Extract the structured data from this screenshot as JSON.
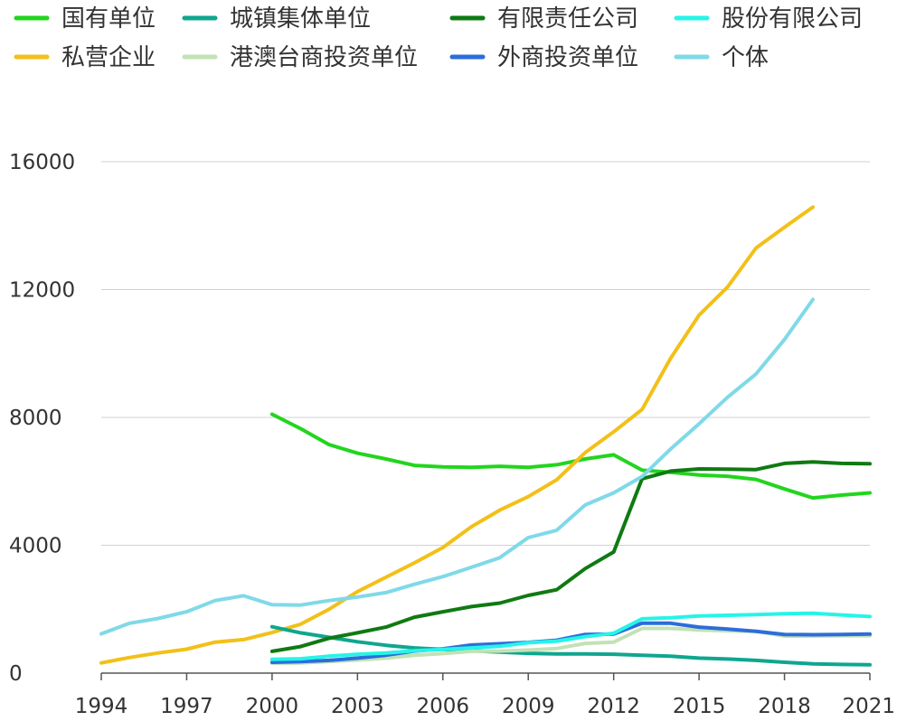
{
  "chart_data": {
    "type": "line",
    "title": "",
    "xlabel": "",
    "ylabel": "",
    "xlim": [
      1994,
      2021
    ],
    "ylim": [
      0,
      16000
    ],
    "grid": true,
    "legend_position": "top",
    "x_ticks": [
      "1994",
      "1997",
      "2000",
      "2003",
      "2006",
      "2009",
      "2012",
      "2015",
      "2018",
      "2021"
    ],
    "y_ticks": [
      "0",
      "4000",
      "8000",
      "12000",
      "16000"
    ],
    "x_tick_values": [
      1994,
      1997,
      2000,
      2003,
      2006,
      2009,
      2012,
      2015,
      2018,
      2021
    ],
    "y_tick_values": [
      0,
      4000,
      8000,
      12000,
      16000
    ],
    "series": [
      {
        "name": "国有单位",
        "color": "#22d51e",
        "x": [
          2000,
          2001,
          2002,
          2003,
          2004,
          2005,
          2006,
          2007,
          2008,
          2009,
          2010,
          2011,
          2012,
          2013,
          2014,
          2015,
          2016,
          2017,
          2018,
          2019,
          2020,
          2021
        ],
        "values": [
          8100,
          7650,
          7150,
          6880,
          6700,
          6500,
          6450,
          6440,
          6470,
          6440,
          6520,
          6700,
          6830,
          6350,
          6280,
          6200,
          6160,
          6060,
          5760,
          5480,
          5570,
          5640
        ]
      },
      {
        "name": "私营企业",
        "color": "#f2c018",
        "x": [
          1994,
          1995,
          1996,
          1997,
          1998,
          1999,
          2000,
          2001,
          2002,
          2003,
          2004,
          2005,
          2006,
          2007,
          2008,
          2009,
          2010,
          2011,
          2012,
          2013,
          2014,
          2015,
          2016,
          2017,
          2018,
          2019
        ],
        "values": [
          320,
          490,
          630,
          750,
          970,
          1050,
          1270,
          1530,
          2000,
          2550,
          3000,
          3450,
          3930,
          4580,
          5100,
          5520,
          6050,
          6900,
          7550,
          8250,
          9850,
          11200,
          12080,
          13300,
          13950,
          14580
        ]
      },
      {
        "name": "城镇集体单位",
        "color": "#0fa68f",
        "x": [
          2000,
          2001,
          2002,
          2003,
          2004,
          2005,
          2006,
          2007,
          2008,
          2009,
          2010,
          2011,
          2012,
          2013,
          2014,
          2015,
          2016,
          2017,
          2018,
          2019,
          2020,
          2021
        ],
        "values": [
          1450,
          1260,
          1120,
          980,
          870,
          790,
          740,
          700,
          660,
          620,
          600,
          600,
          590,
          560,
          530,
          470,
          440,
          400,
          340,
          290,
          270,
          260
        ]
      },
      {
        "name": "港澳台商投资单位",
        "color": "#c2e2b5",
        "x": [
          2000,
          2001,
          2002,
          2003,
          2004,
          2005,
          2006,
          2007,
          2008,
          2009,
          2010,
          2011,
          2012,
          2013,
          2014,
          2015,
          2016,
          2017,
          2018,
          2019,
          2020,
          2021
        ],
        "values": [
          310,
          320,
          360,
          410,
          470,
          560,
          610,
          680,
          690,
          720,
          770,
          930,
          970,
          1400,
          1400,
          1350,
          1320,
          1310,
          1160,
          1160,
          1170,
          1170
        ]
      },
      {
        "name": "有限责任公司",
        "color": "#0f7a12",
        "x": [
          2000,
          2001,
          2002,
          2003,
          2004,
          2005,
          2006,
          2007,
          2008,
          2009,
          2010,
          2011,
          2012,
          2013,
          2014,
          2015,
          2016,
          2017,
          2018,
          2019,
          2020,
          2021
        ],
        "values": [
          680,
          830,
          1090,
          1260,
          1440,
          1750,
          1920,
          2080,
          2190,
          2430,
          2610,
          3270,
          3790,
          6080,
          6320,
          6390,
          6380,
          6370,
          6560,
          6610,
          6560,
          6550
        ]
      },
      {
        "name": "外商投资单位",
        "color": "#2c6ddb",
        "x": [
          2000,
          2001,
          2002,
          2003,
          2004,
          2005,
          2006,
          2007,
          2008,
          2009,
          2010,
          2011,
          2012,
          2013,
          2014,
          2015,
          2016,
          2017,
          2018,
          2019,
          2020,
          2021
        ],
        "values": [
          340,
          360,
          400,
          470,
          560,
          690,
          760,
          880,
          920,
          960,
          1030,
          1210,
          1220,
          1560,
          1560,
          1440,
          1380,
          1310,
          1210,
          1200,
          1210,
          1220
        ]
      },
      {
        "name": "股份有限公司",
        "color": "#26f4e8",
        "x": [
          2000,
          2001,
          2002,
          2003,
          2004,
          2005,
          2006,
          2007,
          2008,
          2009,
          2010,
          2011,
          2012,
          2013,
          2014,
          2015,
          2016,
          2017,
          2018,
          2019,
          2020,
          2021
        ],
        "values": [
          430,
          450,
          530,
          590,
          630,
          700,
          740,
          790,
          840,
          950,
          1000,
          1140,
          1250,
          1700,
          1730,
          1790,
          1810,
          1830,
          1860,
          1870,
          1820,
          1770
        ]
      },
      {
        "name": "个体",
        "color": "#7fd9e8",
        "x": [
          1994,
          1995,
          1996,
          1997,
          1998,
          1999,
          2000,
          2001,
          2002,
          2003,
          2004,
          2005,
          2006,
          2007,
          2008,
          2009,
          2010,
          2011,
          2012,
          2013,
          2014,
          2015,
          2016,
          2017,
          2018,
          2019
        ],
        "values": [
          1230,
          1560,
          1710,
          1920,
          2270,
          2420,
          2140,
          2130,
          2270,
          2380,
          2520,
          2780,
          3020,
          3310,
          3610,
          4240,
          4470,
          5260,
          5640,
          6150,
          7010,
          7800,
          8630,
          9360,
          10440,
          11690
        ]
      }
    ]
  }
}
